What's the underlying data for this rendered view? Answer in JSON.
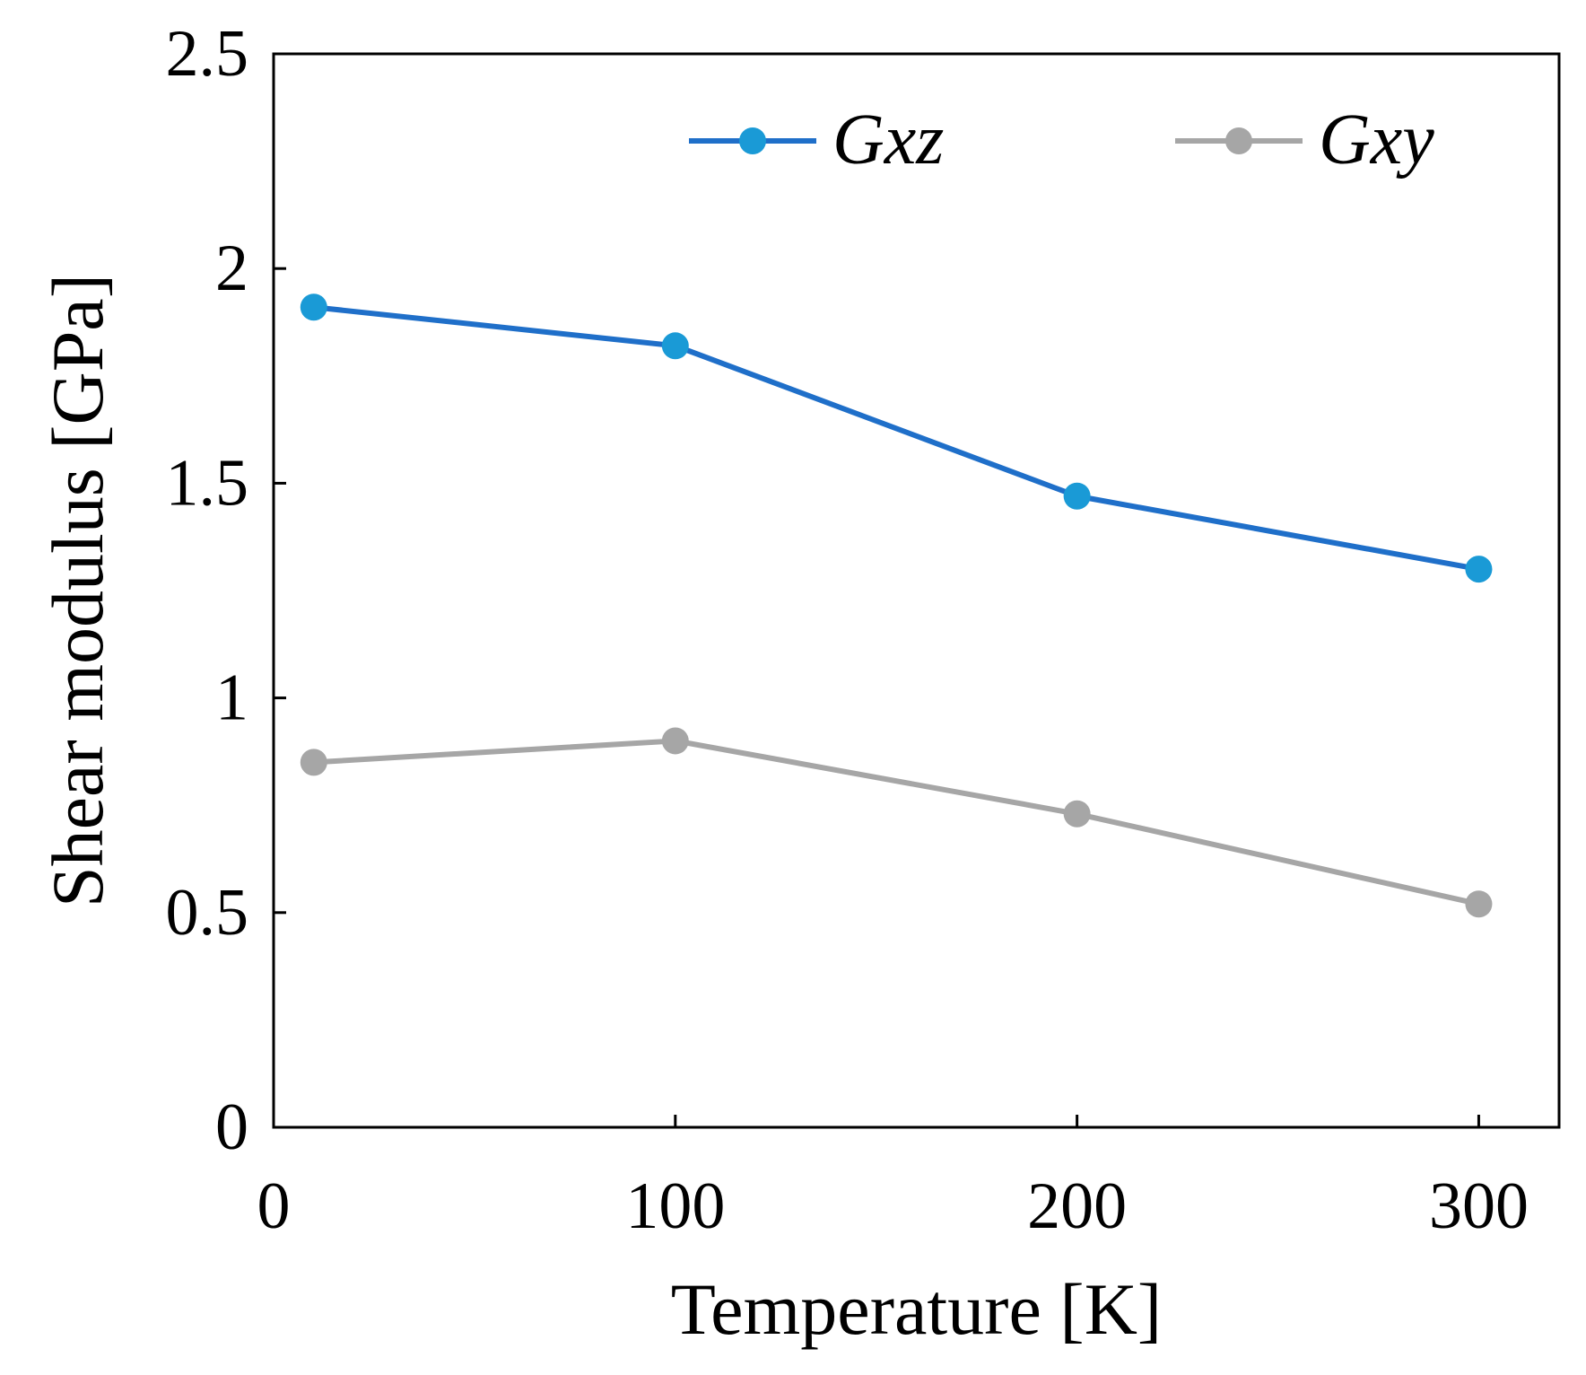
{
  "chart_data": {
    "type": "line",
    "title": "",
    "xlabel": "Temperature [K]",
    "ylabel": "Shear modulus [GPa]",
    "xlim": [
      0,
      320
    ],
    "ylim": [
      0,
      2.5
    ],
    "xticks": [
      0,
      100,
      200,
      300
    ],
    "xtick_labels": [
      "0",
      "100",
      "200",
      "300"
    ],
    "yticks": [
      0,
      0.5,
      1,
      1.5,
      2,
      2.5
    ],
    "ytick_labels": [
      "0",
      "0.5",
      "1",
      "1.5",
      "2",
      "2.5"
    ],
    "grid": false,
    "legend_position": "top",
    "series": [
      {
        "name": "Gxz",
        "x": [
          10,
          100,
          200,
          300
        ],
        "y": [
          1.91,
          1.82,
          1.47,
          1.3
        ],
        "color": "#1a9ad6",
        "line_color": "#1f6fc9"
      },
      {
        "name": "Gxy",
        "x": [
          10,
          100,
          200,
          300
        ],
        "y": [
          0.85,
          0.9,
          0.73,
          0.52
        ],
        "color": "#a6a6a6",
        "line_color": "#a6a6a6"
      }
    ]
  }
}
